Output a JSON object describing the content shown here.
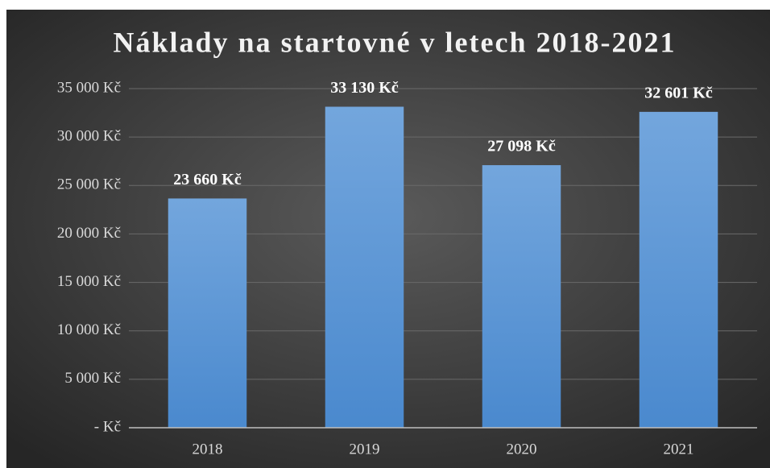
{
  "chart_data": {
    "type": "bar",
    "title": "Náklady na startovné v letech 2018-2021",
    "categories": [
      "2018",
      "2019",
      "2020",
      "2021"
    ],
    "values": [
      23660,
      33130,
      27098,
      32601
    ],
    "value_labels": [
      "23 660 Kč",
      "33 130 Kč",
      "27 098 Kč",
      "32 601 Kč"
    ],
    "color": "#5b9bd5",
    "ylim": [
      0,
      35000
    ],
    "yticks": [
      {
        "value": 0,
        "label": "-  Kč"
      },
      {
        "value": 5000,
        "label": "5 000 Kč"
      },
      {
        "value": 10000,
        "label": "10 000 Kč"
      },
      {
        "value": 15000,
        "label": "15 000 Kč"
      },
      {
        "value": 20000,
        "label": "20 000 Kč"
      },
      {
        "value": 25000,
        "label": "25 000 Kč"
      },
      {
        "value": 30000,
        "label": "30 000 Kč"
      },
      {
        "value": 35000,
        "label": "35 000 Kč"
      }
    ],
    "grid": true
  }
}
